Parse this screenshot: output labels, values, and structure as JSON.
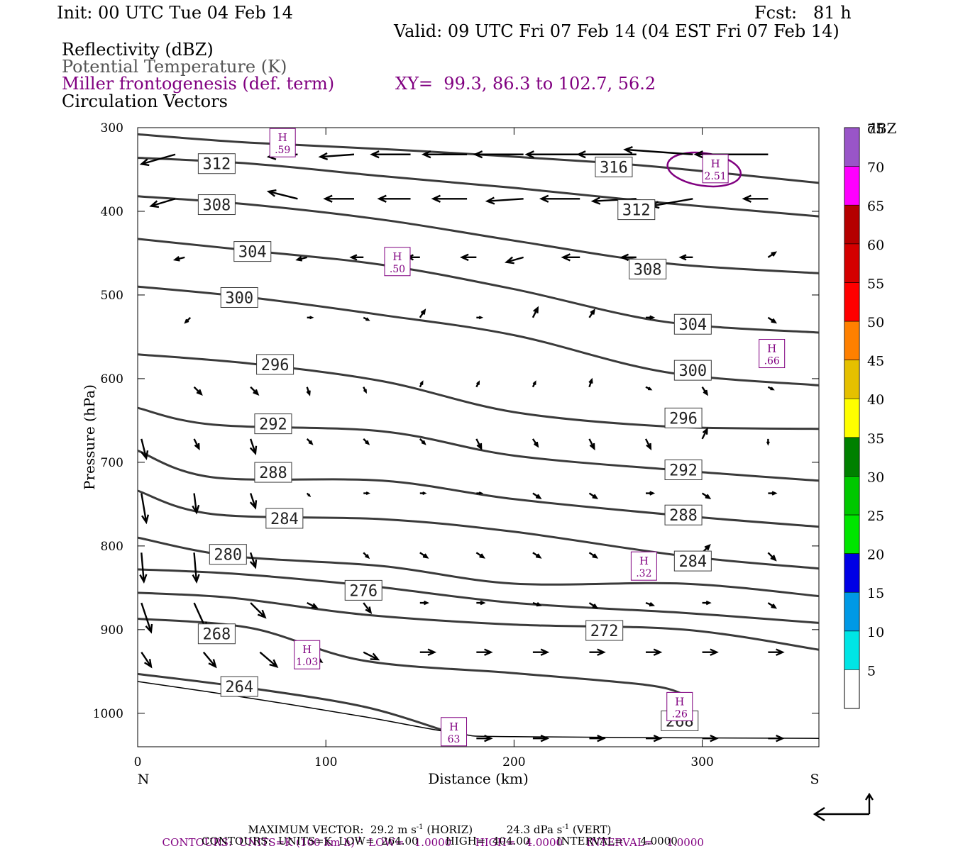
{
  "header": {
    "init": "Init: 00 UTC Tue 04 Feb 14",
    "fcst": "Fcst:   81 h",
    "valid": "Valid: 09 UTC Fri 07 Feb 14 (04 EST Fri 07 Feb 14)",
    "fields": {
      "reflectivity": "Reflectivity (dBZ)",
      "theta": "Potential Temperature (K)",
      "frontogenesis": "Miller frontogenesis (def. term)",
      "xy": "XY=  99.3, 86.3 to 102.7, 56.2",
      "vectors": "Circulation Vectors"
    }
  },
  "chart_data": {
    "type": "cross-section contour",
    "ylabel": "Pressure (hPa)",
    "xlabel": "Distance (km)",
    "xlim": [
      0,
      362
    ],
    "ylim": [
      300,
      1040
    ],
    "y_reversed": true,
    "x_ticks": [
      0,
      100,
      200,
      300
    ],
    "y_ticks": [
      300,
      400,
      500,
      600,
      700,
      800,
      900,
      1000
    ],
    "left_end_label": "N",
    "right_end_label": "S",
    "colorbar": {
      "title": "dBZ",
      "labels": [
        "5",
        "10",
        "15",
        "20",
        "25",
        "30",
        "35",
        "40",
        "45",
        "50",
        "55",
        "60",
        "65",
        "70",
        "75"
      ],
      "colors": [
        "#00e5e5",
        "#0099e5",
        "#0000e5",
        "#00e500",
        "#00c800",
        "#008000",
        "#ffff00",
        "#e5c000",
        "#ff8000",
        "#ff0000",
        "#d40000",
        "#b40000",
        "#ff00ff",
        "#9955c8"
      ]
    },
    "theta_contours": [
      {
        "label": "316",
        "points": [
          [
            0,
            308
          ],
          [
            60,
            318
          ],
          [
            150,
            328
          ],
          [
            250,
            342
          ],
          [
            300,
            352
          ],
          [
            362,
            366
          ]
        ],
        "labels": [
          [
            253,
            347
          ]
        ]
      },
      {
        "label": "312",
        "points": [
          [
            0,
            336
          ],
          [
            60,
            343
          ],
          [
            130,
            358
          ],
          [
            200,
            372
          ],
          [
            280,
            390
          ],
          [
            362,
            406
          ]
        ],
        "labels": [
          [
            42,
            343
          ],
          [
            265,
            398
          ]
        ]
      },
      {
        "label": "308",
        "points": [
          [
            0,
            382
          ],
          [
            60,
            392
          ],
          [
            130,
            410
          ],
          [
            200,
            435
          ],
          [
            280,
            462
          ],
          [
            362,
            474
          ]
        ],
        "labels": [
          [
            42,
            392
          ],
          [
            271,
            469
          ]
        ]
      },
      {
        "label": "304",
        "points": [
          [
            0,
            433
          ],
          [
            60,
            447
          ],
          [
            130,
            464
          ],
          [
            200,
            493
          ],
          [
            280,
            532
          ],
          [
            362,
            545
          ]
        ],
        "labels": [
          [
            61,
            448
          ],
          [
            295,
            535
          ]
        ]
      },
      {
        "label": "300",
        "points": [
          [
            0,
            490
          ],
          [
            60,
            503
          ],
          [
            130,
            524
          ],
          [
            200,
            548
          ],
          [
            280,
            592
          ],
          [
            362,
            608
          ]
        ],
        "labels": [
          [
            54,
            503
          ],
          [
            295,
            590
          ]
        ]
      },
      {
        "label": "296",
        "points": [
          [
            0,
            571
          ],
          [
            60,
            582
          ],
          [
            130,
            603
          ],
          [
            200,
            640
          ],
          [
            280,
            657
          ],
          [
            362,
            660
          ]
        ],
        "labels": [
          [
            73,
            583
          ],
          [
            290,
            647
          ]
        ]
      },
      {
        "label": "292",
        "points": [
          [
            0,
            635
          ],
          [
            40,
            655
          ],
          [
            130,
            663
          ],
          [
            200,
            692
          ],
          [
            290,
            710
          ],
          [
            362,
            722
          ]
        ],
        "labels": [
          [
            72,
            654
          ],
          [
            290,
            709
          ]
        ]
      },
      {
        "label": "288",
        "points": [
          [
            0,
            686
          ],
          [
            40,
            718
          ],
          [
            130,
            722
          ],
          [
            200,
            744
          ],
          [
            290,
            764
          ],
          [
            362,
            777
          ]
        ],
        "labels": [
          [
            72,
            712
          ],
          [
            290,
            763
          ]
        ]
      },
      {
        "label": "284",
        "points": [
          [
            0,
            734
          ],
          [
            40,
            762
          ],
          [
            130,
            768
          ],
          [
            200,
            783
          ],
          [
            290,
            812
          ],
          [
            362,
            827
          ]
        ],
        "labels": [
          [
            78,
            767
          ],
          [
            295,
            818
          ]
        ]
      },
      {
        "label": "280",
        "points": [
          [
            0,
            790
          ],
          [
            50,
            812
          ],
          [
            130,
            824
          ],
          [
            200,
            845
          ],
          [
            290,
            845
          ],
          [
            362,
            860
          ]
        ],
        "labels": [
          [
            48,
            810
          ]
        ]
      },
      {
        "label": "276",
        "points": [
          [
            0,
            828
          ],
          [
            50,
            833
          ],
          [
            120,
            847
          ],
          [
            200,
            868
          ],
          [
            290,
            880
          ],
          [
            362,
            892
          ]
        ],
        "labels": [
          [
            120,
            853
          ]
        ]
      },
      {
        "label": "272",
        "points": [
          [
            0,
            856
          ],
          [
            50,
            862
          ],
          [
            120,
            882
          ],
          [
            200,
            894
          ],
          [
            290,
            900
          ],
          [
            362,
            924
          ]
        ],
        "labels": [
          [
            248,
            901
          ]
        ]
      },
      {
        "label": "268",
        "points": [
          [
            0,
            887
          ],
          [
            60,
            898
          ],
          [
            120,
            937
          ],
          [
            200,
            952
          ],
          [
            270,
            966
          ],
          [
            290,
            977
          ]
        ],
        "labels": [
          [
            42,
            905
          ],
          [
            288,
            1009
          ]
        ]
      },
      {
        "label": "264",
        "points": [
          [
            0,
            953
          ],
          [
            60,
            970
          ],
          [
            120,
            992
          ],
          [
            162,
            1020
          ]
        ],
        "labels": [
          [
            54,
            968
          ]
        ]
      }
    ],
    "topography": [
      [
        0,
        962
      ],
      [
        60,
        982
      ],
      [
        120,
        1004
      ],
      [
        170,
        1024
      ],
      [
        200,
        1028
      ],
      [
        362,
        1030
      ]
    ],
    "frontogenesis_maxima": [
      {
        "mark": "H",
        "value": ".59",
        "x": 77,
        "p": 318
      },
      {
        "mark": "H",
        "value": "2.51",
        "x": 307,
        "p": 349
      },
      {
        "mark": "H",
        "value": ".50",
        "x": 138,
        "p": 460
      },
      {
        "mark": "H",
        "value": ".66",
        "x": 337,
        "p": 570
      },
      {
        "mark": "H",
        "value": ".32",
        "x": 269,
        "p": 824
      },
      {
        "mark": "H",
        "value": "1.03",
        "x": 90,
        "p": 930
      },
      {
        "mark": "H",
        "value": ".26",
        "x": 288,
        "p": 992
      },
      {
        "mark": "H",
        "value": "63",
        "x": 168,
        "p": 1022
      }
    ],
    "frontogenesis_contour_center": [
      301,
      350
    ],
    "vector_rows": [
      {
        "p": 332,
        "x": [
          20,
          50,
          85,
          115,
          145,
          175,
          205,
          235,
          265,
          295,
          335
        ],
        "u": [
          -14,
          -9,
          -12,
          -14,
          -16,
          -18,
          -20,
          -22,
          -24,
          -28,
          -30
        ],
        "w": [
          4,
          4,
          1,
          1,
          0,
          0,
          0,
          0,
          0,
          -2,
          0
        ]
      },
      {
        "p": 385,
        "x": [
          20,
          50,
          85,
          115,
          145,
          175,
          205,
          235,
          265,
          295,
          335
        ],
        "u": [
          -10,
          -9,
          -12,
          -12,
          -13,
          -14,
          -15,
          -16,
          -18,
          -17,
          -10
        ],
        "w": [
          3,
          3,
          -3,
          0,
          0,
          0,
          1,
          0,
          1,
          3,
          0
        ]
      },
      {
        "p": 455,
        "x": [
          25,
          90,
          120,
          150,
          180,
          205,
          235,
          265,
          295,
          335
        ],
        "u": [
          -4,
          -4,
          -5,
          -5,
          -6,
          -7,
          -7,
          -6,
          -5,
          3
        ],
        "w": [
          1,
          1,
          0,
          0,
          0,
          2,
          0,
          0,
          0,
          -2
        ]
      },
      {
        "p": 527,
        "x": [
          28,
          90,
          120,
          150,
          180,
          210,
          240,
          270,
          300,
          335
        ],
        "u": [
          -2,
          2,
          2,
          2,
          2,
          2,
          2,
          3,
          3,
          3
        ],
        "w": [
          2,
          0,
          1,
          -3,
          0,
          -4,
          -3,
          0,
          0,
          2
        ]
      },
      {
        "p": 610,
        "x": [
          30,
          60,
          90,
          120,
          150,
          180,
          210,
          240,
          270,
          300,
          335
        ],
        "u": [
          3,
          3,
          1,
          1,
          1,
          1,
          1,
          1,
          2,
          2,
          2
        ],
        "w": [
          3,
          3,
          3,
          2,
          -2,
          -2,
          -2,
          -3,
          1,
          3,
          1
        ]
      },
      {
        "p": 672,
        "x": [
          2,
          30,
          60,
          90,
          120,
          150,
          180,
          210,
          240,
          270,
          300,
          335
        ],
        "u": [
          2,
          2,
          2,
          2,
          2,
          2,
          2,
          2,
          2,
          2,
          2,
          0
        ],
        "w": [
          8,
          4,
          6,
          2,
          2,
          2,
          4,
          3,
          4,
          4,
          -4,
          2
        ]
      },
      {
        "p": 737,
        "x": [
          2,
          30,
          60,
          90,
          120,
          150,
          180,
          210,
          240,
          270,
          300,
          335
        ],
        "u": [
          2,
          1,
          2,
          1,
          2,
          2,
          2,
          3,
          3,
          3,
          3,
          3
        ],
        "w": [
          12,
          8,
          6,
          1,
          0,
          0,
          0,
          2,
          2,
          0,
          2,
          0
        ]
      },
      {
        "p": 808,
        "x": [
          2,
          30,
          60,
          90,
          120,
          150,
          180,
          210,
          240,
          270,
          300,
          335
        ],
        "u": [
          1,
          1,
          2,
          0,
          2,
          3,
          3,
          3,
          3,
          3,
          3,
          3
        ],
        "w": [
          12,
          12,
          6,
          0,
          2,
          2,
          2,
          2,
          2,
          1,
          -3,
          3
        ]
      },
      {
        "p": 868,
        "x": [
          2,
          30,
          60,
          90,
          120,
          150,
          180,
          210,
          240,
          270,
          300,
          335
        ],
        "u": [
          4,
          5,
          6,
          4,
          3,
          3,
          3,
          3,
          3,
          3,
          3,
          3
        ],
        "w": [
          12,
          11,
          6,
          2,
          4,
          0,
          0,
          1,
          2,
          1,
          0,
          2
        ]
      },
      {
        "p": 927,
        "x": [
          2,
          35,
          65,
          90,
          120,
          150,
          180,
          210,
          240,
          270,
          300,
          335
        ],
        "u": [
          4,
          5,
          7,
          6,
          6,
          6,
          6,
          6,
          6,
          6,
          6,
          6
        ],
        "w": [
          6,
          6,
          6,
          4,
          3,
          0,
          0,
          0,
          0,
          0,
          0,
          0
        ]
      },
      {
        "p": 1030,
        "x": [
          180,
          210,
          240,
          270,
          300,
          335
        ],
        "u": [
          6,
          6,
          6,
          6,
          6,
          6
        ],
        "w": [
          0,
          0,
          0,
          0,
          0,
          0
        ]
      }
    ],
    "footer": {
      "max_vector_title": "MAXIMUM VECTOR:",
      "max_horiz": "29.2 m s",
      "max_horiz_exp": "-1",
      "max_horiz_tag": "(HORIZ)",
      "max_vert": "24.3 dPa s",
      "max_vert_exp": "-1",
      "max_vert_tag": "(VERT)",
      "contour1": "CONTOURS:  UNITS=K (100 km h)",
      "contour1_exp": "-1",
      "contour1_rest": "  LOW=   1.0000       HIGH=   4.0000       INTERVAL=    1.0000",
      "contour2": "CONTOURS:  UNITS=K  LOW=  264.00        HIGH=  404.00        INTERVAL=     4.0000"
    }
  }
}
